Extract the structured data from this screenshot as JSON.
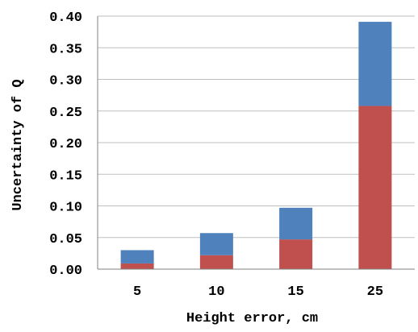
{
  "chart_data": {
    "type": "bar",
    "stacked": true,
    "title": "",
    "xlabel": "Height error, cm",
    "ylabel": "Uncertainty of Q",
    "categories": [
      "5",
      "10",
      "15",
      "25"
    ],
    "series": [
      {
        "values": [
          0.009,
          0.022,
          0.047,
          0.258
        ],
        "color": "#c0504d"
      },
      {
        "values": [
          0.021,
          0.035,
          0.05,
          0.133
        ],
        "color": "#4f81bd"
      }
    ],
    "ylim": [
      0,
      0.4
    ],
    "yticks": [
      "0.00",
      "0.05",
      "0.10",
      "0.15",
      "0.20",
      "0.25",
      "0.30",
      "0.35",
      "0.40"
    ],
    "grid": true,
    "legend": "none"
  }
}
